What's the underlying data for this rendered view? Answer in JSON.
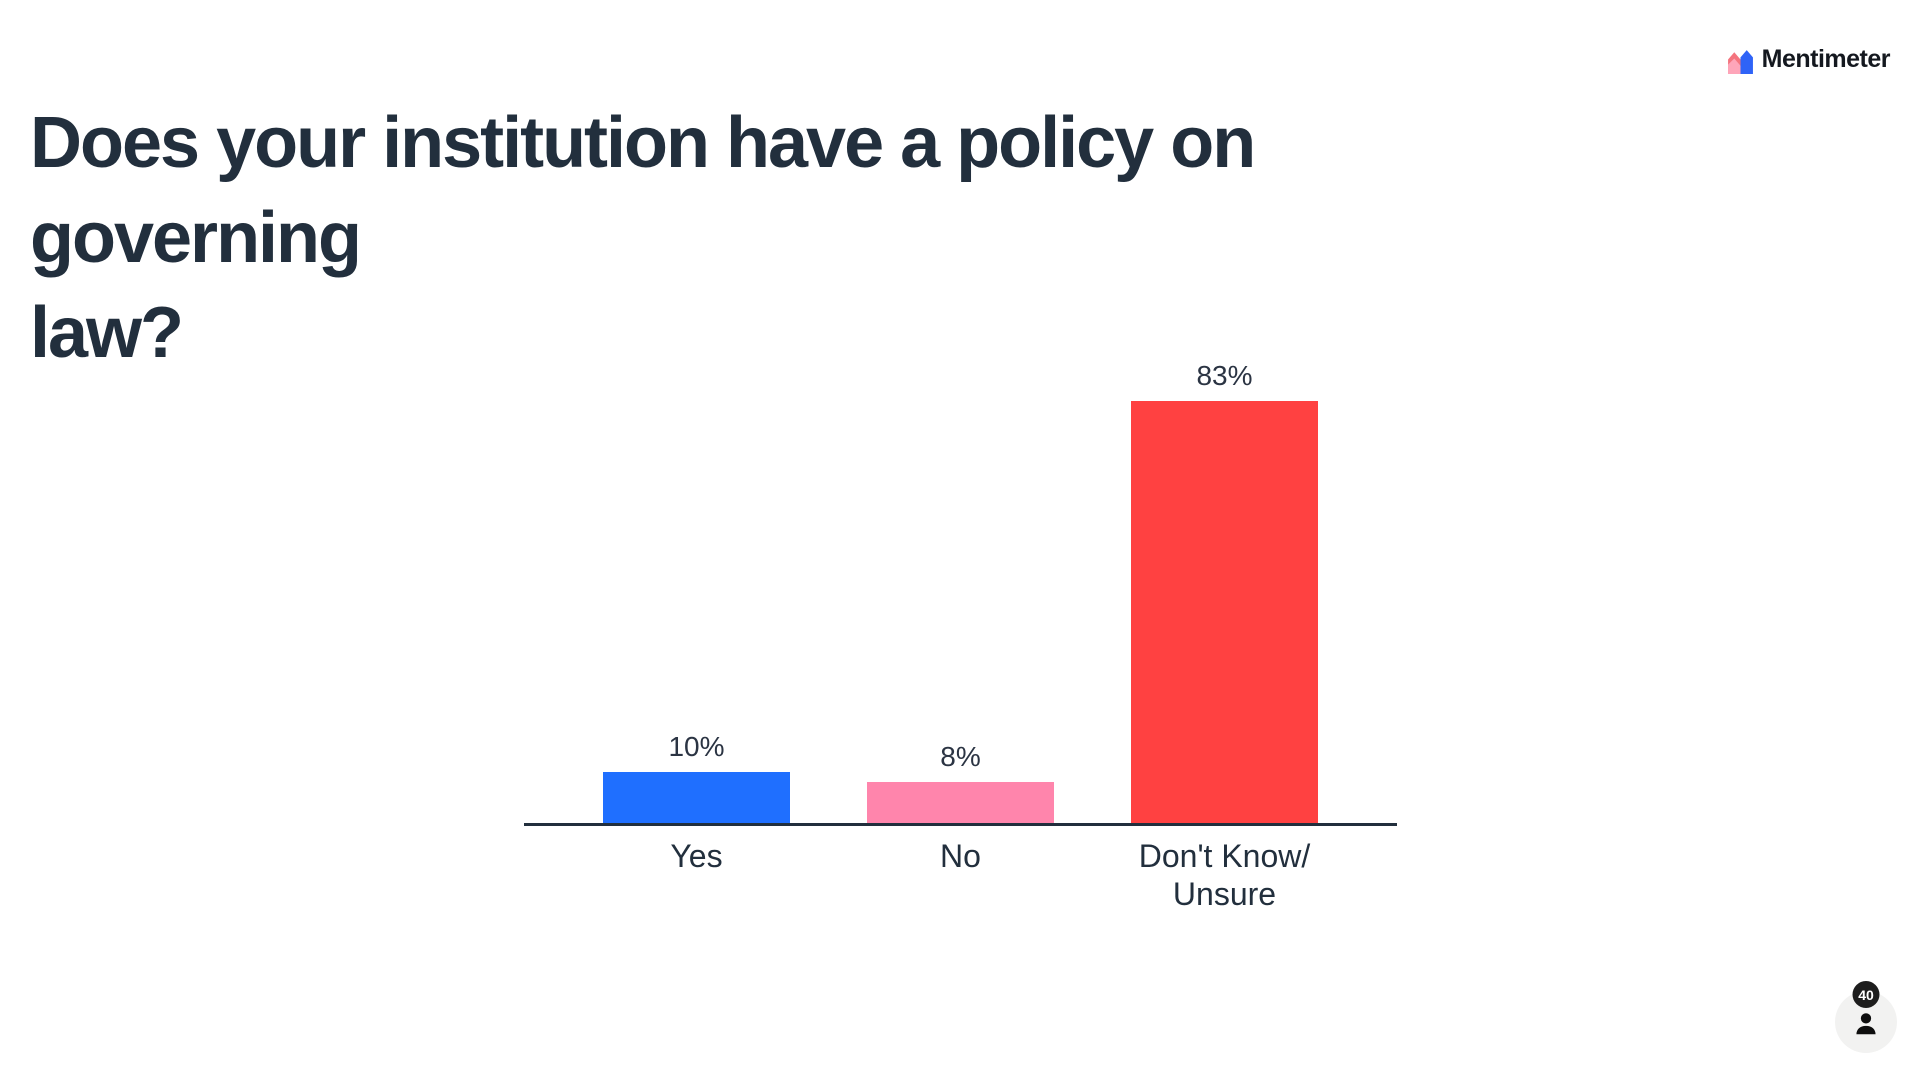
{
  "logo": {
    "brand": "Mentimeter"
  },
  "title": {
    "lines": [
      "Does your institution have a policy on governing",
      "law?"
    ],
    "full_text": "Does your institution have a policy on governing law?"
  },
  "chart_data": {
    "type": "bar",
    "title": "Does your institution have a policy on governing law?",
    "categories": [
      "Yes",
      "No",
      "Don't Know/\nUnsure"
    ],
    "values": [
      10,
      8,
      83
    ],
    "value_labels": [
      "10%",
      "8%",
      "83%"
    ],
    "unit": "percent",
    "ylim": [
      0,
      100
    ],
    "bar_colors": [
      "#1f6fff",
      "#ff85ac",
      "#ff4141"
    ],
    "axis_color": "#222f3d",
    "grid": false,
    "legend": false,
    "value_label_position": "above-bar"
  },
  "counter": {
    "respondents_count": "40"
  }
}
